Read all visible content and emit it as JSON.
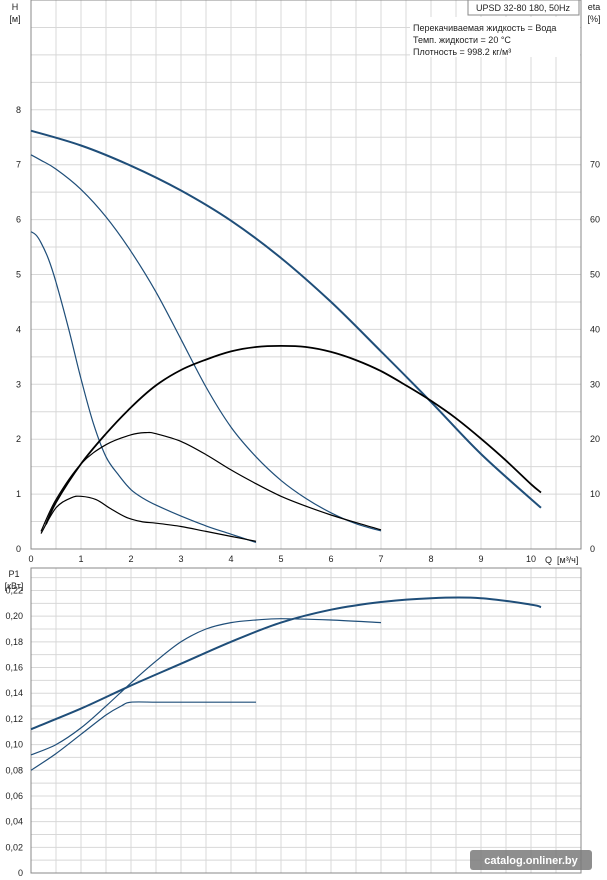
{
  "chart_data": [
    {
      "type": "line",
      "title": "UPSD 32-80 180, 50Hz",
      "info_lines": [
        "Перекачиваемая жидкость = Вода",
        "Темп. жидкости = 20 °C",
        "Плотность = 998.2 кг/м³"
      ],
      "ylabel": "H",
      "yunit": "[м]",
      "y2label": "eta",
      "y2unit": "[%]",
      "xlabel": "Q",
      "xunit": "[м³/ч]",
      "xlim": [
        0,
        11
      ],
      "ylim": [
        0,
        10
      ],
      "y2lim": [
        0,
        100
      ],
      "x_ticks": [
        0,
        1,
        2,
        3,
        4,
        5,
        6,
        7,
        8,
        9,
        10
      ],
      "y_ticks": [
        0,
        1,
        2,
        3,
        4,
        5,
        6,
        7,
        8
      ],
      "y2_ticks": [
        0,
        10,
        20,
        30,
        40,
        50,
        60,
        70
      ],
      "grid": true,
      "series": [
        {
          "axis": "left",
          "color": "#1f4e79",
          "width": 2,
          "x": [
            0,
            1,
            2,
            3,
            4,
            5,
            6,
            7,
            8,
            9,
            10.2
          ],
          "y": [
            7.62,
            7.35,
            6.98,
            6.53,
            5.98,
            5.3,
            4.5,
            3.6,
            2.68,
            1.73,
            0.75
          ]
        },
        {
          "axis": "left",
          "color": "#1f4e79",
          "width": 1.2,
          "x": [
            0,
            0.2,
            0.5,
            1,
            1.5,
            2,
            2.5,
            3,
            3.5,
            4,
            4.5,
            5,
            5.5,
            6,
            6.5,
            7
          ],
          "y": [
            7.18,
            7.08,
            6.92,
            6.55,
            6.05,
            5.42,
            4.68,
            3.82,
            2.95,
            2.22,
            1.68,
            1.25,
            0.92,
            0.66,
            0.46,
            0.33
          ]
        },
        {
          "axis": "left",
          "color": "#1f4e79",
          "width": 1.2,
          "x": [
            0,
            0.1,
            0.2,
            0.35,
            0.5,
            0.75,
            1,
            1.25,
            1.5,
            1.75,
            2,
            2.25,
            2.5,
            3,
            3.5,
            4,
            4.5
          ],
          "y": [
            5.78,
            5.72,
            5.58,
            5.28,
            4.86,
            4.02,
            3.1,
            2.28,
            1.68,
            1.35,
            1.08,
            0.92,
            0.8,
            0.6,
            0.42,
            0.27,
            0.12
          ]
        },
        {
          "axis": "right",
          "color": "#000000",
          "width": 1.8,
          "x": [
            0.3,
            0.5,
            1,
            1.5,
            2,
            2.5,
            3,
            3.5,
            4,
            4.5,
            5,
            5.5,
            6,
            6.5,
            7,
            7.5,
            8,
            8.5,
            9,
            9.5,
            10,
            10.2
          ],
          "y": [
            4.5,
            8.5,
            15.5,
            21.0,
            25.8,
            29.8,
            32.6,
            34.5,
            36.0,
            36.8,
            37.0,
            36.8,
            35.9,
            34.4,
            32.4,
            29.8,
            27.0,
            23.8,
            20.1,
            16.1,
            11.8,
            10.3
          ]
        },
        {
          "axis": "right",
          "color": "#000000",
          "width": 1.2,
          "x": [
            0.2,
            0.5,
            1,
            1.5,
            2,
            2.3,
            2.5,
            3,
            3.5,
            4,
            4.5,
            5,
            5.5,
            6,
            6.5,
            7
          ],
          "y": [
            3.2,
            9.0,
            15.5,
            19.0,
            20.8,
            21.2,
            21.0,
            19.6,
            17.2,
            14.4,
            11.9,
            9.6,
            7.8,
            6.2,
            4.8,
            3.5
          ]
        },
        {
          "axis": "right",
          "color": "#000000",
          "width": 1.2,
          "x": [
            0.2,
            0.5,
            0.8,
            1,
            1.3,
            1.6,
            1.9,
            2.2,
            2.5,
            3,
            3.5,
            4,
            4.5
          ],
          "y": [
            2.8,
            7.5,
            9.3,
            9.6,
            9.0,
            7.3,
            5.8,
            5.0,
            4.7,
            4.1,
            3.2,
            2.3,
            1.4
          ]
        }
      ]
    },
    {
      "type": "line",
      "ylabel": "P1",
      "yunit": "[кВт]",
      "xlim": [
        0,
        11
      ],
      "ylim": [
        0,
        0.2375
      ],
      "y_ticks": [
        0,
        0.02,
        0.04,
        0.06,
        0.08,
        0.1,
        0.12,
        0.14,
        0.16,
        0.18,
        0.2,
        0.22
      ],
      "y_tick_labels": [
        "0",
        "0,02",
        "0,04",
        "0,06",
        "0,08",
        "0,10",
        "0,12",
        "0,14",
        "0,16",
        "0,18",
        "0,20",
        "0,22"
      ],
      "grid": true,
      "series": [
        {
          "color": "#1f4e79",
          "width": 2,
          "x": [
            0,
            1,
            2,
            3,
            4,
            5,
            6,
            7,
            8,
            9,
            10,
            10.2
          ],
          "y": [
            0.112,
            0.128,
            0.146,
            0.163,
            0.18,
            0.195,
            0.205,
            0.211,
            0.214,
            0.214,
            0.209,
            0.207
          ]
        },
        {
          "color": "#1f4e79",
          "width": 1.2,
          "x": [
            0,
            0.5,
            1,
            1.5,
            2,
            2.5,
            3,
            3.5,
            4,
            4.5,
            5,
            6,
            7
          ],
          "y": [
            0.092,
            0.1,
            0.113,
            0.13,
            0.148,
            0.165,
            0.18,
            0.19,
            0.195,
            0.197,
            0.198,
            0.197,
            0.195
          ]
        },
        {
          "color": "#1f4e79",
          "width": 1.2,
          "x": [
            0,
            0.5,
            1,
            1.5,
            1.8,
            2,
            2.5,
            3,
            4,
            4.5
          ],
          "y": [
            0.08,
            0.093,
            0.108,
            0.123,
            0.13,
            0.133,
            0.133,
            0.133,
            0.133,
            0.133
          ]
        }
      ]
    }
  ],
  "watermark": "catalog.onliner.by"
}
